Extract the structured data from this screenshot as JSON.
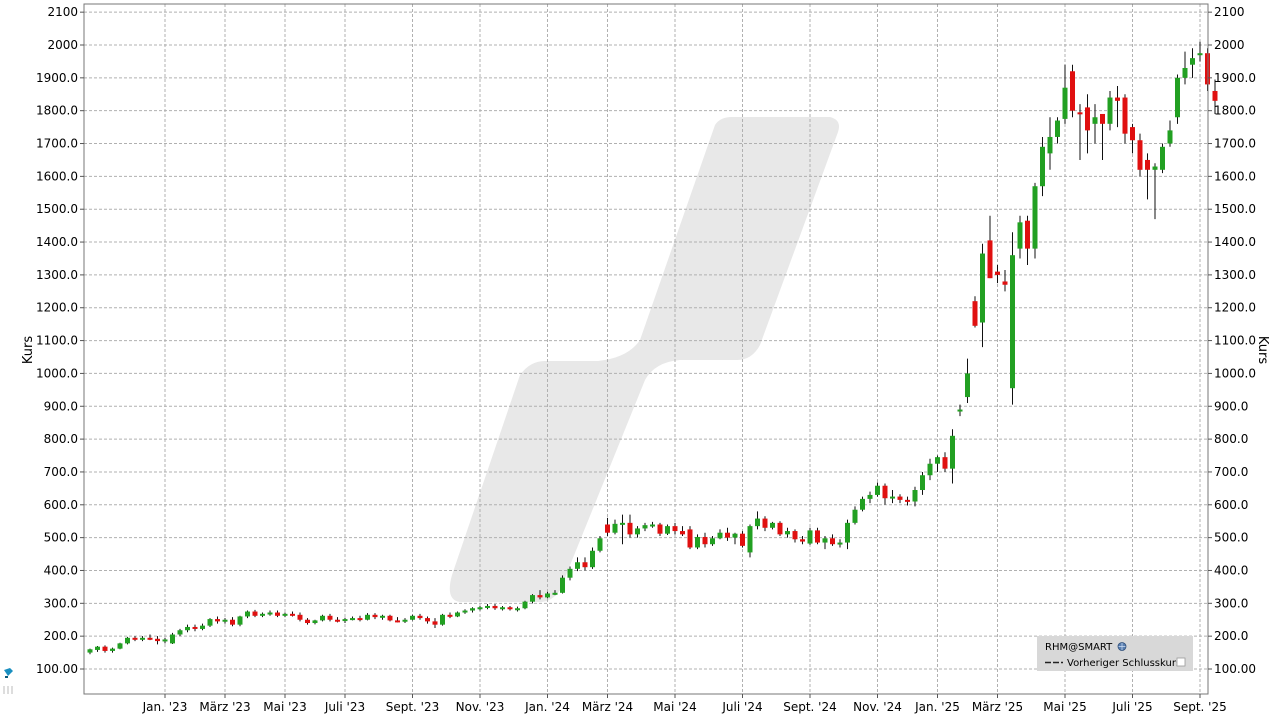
{
  "chart_data": {
    "type": "candlestick",
    "symbol": "RHM@SMART",
    "ylabel_left": "Kurs",
    "ylabel_right": "Kurs",
    "ylim": [
      60,
      2120
    ],
    "y_ticks_left": [
      "2100",
      "2000",
      "1900.0",
      "1800.0",
      "1700.0",
      "1600.0",
      "1500.0",
      "1400.0",
      "1300.0",
      "1200.0",
      "1100.0",
      "1000.0",
      "900.0",
      "800.0",
      "700.0",
      "600.0",
      "500.0",
      "400.0",
      "300.0",
      "200.0",
      "100.00"
    ],
    "y_ticks_right": [
      "2100",
      "2000",
      "1900.0",
      "1800.0",
      "1700.0",
      "1600.0",
      "1500.0",
      "1400.0",
      "1300.0",
      "1200.0",
      "1100.0",
      "1000.0",
      "900.0",
      "800.0",
      "700.0",
      "600.0",
      "500.0",
      "400.0",
      "300.0",
      "200.0",
      "100.00"
    ],
    "y_tick_values": [
      2100,
      2000,
      1900,
      1800,
      1700,
      1600,
      1500,
      1400,
      1300,
      1200,
      1100,
      1000,
      900,
      800,
      700,
      600,
      500,
      400,
      300,
      200,
      100
    ],
    "x_ticks": [
      "Jan. '23",
      "März '23",
      "Mai '23",
      "Juli '23",
      "Sept. '23",
      "Nov. '23",
      "Jan. '24",
      "März '24",
      "Mai '24",
      "Juli '24",
      "Sept. '24",
      "Nov. '24",
      "Jan. '25",
      "März '25",
      "Mai '25",
      "Juli '25",
      "Sept. '25"
    ],
    "x_tick_weeks": [
      10,
      18,
      26,
      34,
      43,
      52,
      61,
      69,
      78,
      87,
      96,
      105,
      113,
      121,
      130,
      139,
      148
    ],
    "grid": true,
    "legend": {
      "position": "bottom-right",
      "series_label": "RHM@SMART",
      "line_label": "Vorheriger Schlusskurs"
    },
    "colors": {
      "up": "#22a022",
      "down": "#e01010",
      "grid": "#b0b0b0",
      "wick": "#111111"
    },
    "candles": [
      {
        "o": 150,
        "h": 162,
        "l": 145,
        "c": 160
      },
      {
        "o": 158,
        "h": 170,
        "l": 152,
        "c": 168
      },
      {
        "o": 168,
        "h": 172,
        "l": 150,
        "c": 155
      },
      {
        "o": 155,
        "h": 165,
        "l": 150,
        "c": 162
      },
      {
        "o": 162,
        "h": 180,
        "l": 160,
        "c": 178
      },
      {
        "o": 178,
        "h": 198,
        "l": 175,
        "c": 195
      },
      {
        "o": 195,
        "h": 200,
        "l": 185,
        "c": 190
      },
      {
        "o": 190,
        "h": 200,
        "l": 185,
        "c": 195
      },
      {
        "o": 195,
        "h": 205,
        "l": 188,
        "c": 192
      },
      {
        "o": 192,
        "h": 200,
        "l": 175,
        "c": 185
      },
      {
        "o": 185,
        "h": 195,
        "l": 178,
        "c": 190
      },
      {
        "o": 178,
        "h": 210,
        "l": 176,
        "c": 205
      },
      {
        "o": 205,
        "h": 222,
        "l": 200,
        "c": 218
      },
      {
        "o": 218,
        "h": 235,
        "l": 212,
        "c": 228
      },
      {
        "o": 228,
        "h": 235,
        "l": 215,
        "c": 222
      },
      {
        "o": 222,
        "h": 238,
        "l": 218,
        "c": 232
      },
      {
        "o": 232,
        "h": 255,
        "l": 228,
        "c": 252
      },
      {
        "o": 252,
        "h": 260,
        "l": 238,
        "c": 245
      },
      {
        "o": 245,
        "h": 255,
        "l": 238,
        "c": 250
      },
      {
        "o": 250,
        "h": 258,
        "l": 230,
        "c": 235
      },
      {
        "o": 235,
        "h": 262,
        "l": 230,
        "c": 260
      },
      {
        "o": 260,
        "h": 278,
        "l": 255,
        "c": 275
      },
      {
        "o": 275,
        "h": 280,
        "l": 258,
        "c": 262
      },
      {
        "o": 262,
        "h": 272,
        "l": 258,
        "c": 268
      },
      {
        "o": 268,
        "h": 278,
        "l": 262,
        "c": 272
      },
      {
        "o": 272,
        "h": 278,
        "l": 258,
        "c": 262
      },
      {
        "o": 262,
        "h": 272,
        "l": 258,
        "c": 268
      },
      {
        "o": 268,
        "h": 275,
        "l": 260,
        "c": 265
      },
      {
        "o": 265,
        "h": 272,
        "l": 245,
        "c": 250
      },
      {
        "o": 250,
        "h": 255,
        "l": 235,
        "c": 240
      },
      {
        "o": 240,
        "h": 250,
        "l": 236,
        "c": 248
      },
      {
        "o": 248,
        "h": 265,
        "l": 245,
        "c": 262
      },
      {
        "o": 262,
        "h": 268,
        "l": 245,
        "c": 250
      },
      {
        "o": 250,
        "h": 258,
        "l": 242,
        "c": 248
      },
      {
        "o": 248,
        "h": 256,
        "l": 240,
        "c": 252
      },
      {
        "o": 252,
        "h": 260,
        "l": 248,
        "c": 255
      },
      {
        "o": 255,
        "h": 262,
        "l": 245,
        "c": 250
      },
      {
        "o": 250,
        "h": 270,
        "l": 248,
        "c": 265
      },
      {
        "o": 265,
        "h": 270,
        "l": 252,
        "c": 258
      },
      {
        "o": 258,
        "h": 265,
        "l": 250,
        "c": 262
      },
      {
        "o": 262,
        "h": 265,
        "l": 245,
        "c": 248
      },
      {
        "o": 248,
        "h": 258,
        "l": 242,
        "c": 245
      },
      {
        "o": 245,
        "h": 255,
        "l": 240,
        "c": 250
      },
      {
        "o": 250,
        "h": 265,
        "l": 248,
        "c": 262
      },
      {
        "o": 262,
        "h": 268,
        "l": 250,
        "c": 255
      },
      {
        "o": 255,
        "h": 260,
        "l": 238,
        "c": 245
      },
      {
        "o": 245,
        "h": 255,
        "l": 225,
        "c": 235
      },
      {
        "o": 235,
        "h": 268,
        "l": 232,
        "c": 265
      },
      {
        "o": 265,
        "h": 272,
        "l": 255,
        "c": 260
      },
      {
        "o": 260,
        "h": 275,
        "l": 258,
        "c": 272
      },
      {
        "o": 272,
        "h": 282,
        "l": 268,
        "c": 278
      },
      {
        "o": 278,
        "h": 288,
        "l": 272,
        "c": 285
      },
      {
        "o": 285,
        "h": 292,
        "l": 278,
        "c": 288
      },
      {
        "o": 288,
        "h": 298,
        "l": 282,
        "c": 292
      },
      {
        "o": 292,
        "h": 298,
        "l": 280,
        "c": 285
      },
      {
        "o": 285,
        "h": 292,
        "l": 278,
        "c": 288
      },
      {
        "o": 288,
        "h": 292,
        "l": 278,
        "c": 282
      },
      {
        "o": 282,
        "h": 290,
        "l": 275,
        "c": 285
      },
      {
        "o": 285,
        "h": 308,
        "l": 282,
        "c": 305
      },
      {
        "o": 305,
        "h": 328,
        "l": 300,
        "c": 325
      },
      {
        "o": 325,
        "h": 340,
        "l": 312,
        "c": 318
      },
      {
        "o": 318,
        "h": 335,
        "l": 315,
        "c": 330
      },
      {
        "o": 330,
        "h": 340,
        "l": 325,
        "c": 332
      },
      {
        "o": 332,
        "h": 385,
        "l": 330,
        "c": 378
      },
      {
        "o": 378,
        "h": 412,
        "l": 370,
        "c": 405
      },
      {
        "o": 405,
        "h": 440,
        "l": 398,
        "c": 425
      },
      {
        "o": 425,
        "h": 440,
        "l": 400,
        "c": 410
      },
      {
        "o": 410,
        "h": 470,
        "l": 405,
        "c": 460
      },
      {
        "o": 460,
        "h": 505,
        "l": 455,
        "c": 498
      },
      {
        "o": 540,
        "h": 560,
        "l": 505,
        "c": 515
      },
      {
        "o": 515,
        "h": 555,
        "l": 510,
        "c": 542
      },
      {
        "o": 542,
        "h": 570,
        "l": 480,
        "c": 545
      },
      {
        "o": 545,
        "h": 570,
        "l": 500,
        "c": 510
      },
      {
        "o": 510,
        "h": 535,
        "l": 500,
        "c": 528
      },
      {
        "o": 528,
        "h": 545,
        "l": 520,
        "c": 538
      },
      {
        "o": 538,
        "h": 548,
        "l": 530,
        "c": 540
      },
      {
        "o": 540,
        "h": 545,
        "l": 505,
        "c": 512
      },
      {
        "o": 512,
        "h": 540,
        "l": 508,
        "c": 535
      },
      {
        "o": 535,
        "h": 545,
        "l": 510,
        "c": 520
      },
      {
        "o": 520,
        "h": 535,
        "l": 505,
        "c": 510
      },
      {
        "o": 525,
        "h": 535,
        "l": 465,
        "c": 470
      },
      {
        "o": 470,
        "h": 510,
        "l": 465,
        "c": 502
      },
      {
        "o": 502,
        "h": 515,
        "l": 470,
        "c": 480
      },
      {
        "o": 480,
        "h": 505,
        "l": 475,
        "c": 498
      },
      {
        "o": 498,
        "h": 525,
        "l": 495,
        "c": 515
      },
      {
        "o": 515,
        "h": 530,
        "l": 490,
        "c": 500
      },
      {
        "o": 500,
        "h": 515,
        "l": 480,
        "c": 512
      },
      {
        "o": 512,
        "h": 520,
        "l": 470,
        "c": 475
      },
      {
        "o": 455,
        "h": 540,
        "l": 440,
        "c": 535
      },
      {
        "o": 535,
        "h": 580,
        "l": 525,
        "c": 558
      },
      {
        "o": 558,
        "h": 565,
        "l": 520,
        "c": 530
      },
      {
        "o": 530,
        "h": 548,
        "l": 525,
        "c": 545
      },
      {
        "o": 545,
        "h": 550,
        "l": 505,
        "c": 510
      },
      {
        "o": 510,
        "h": 530,
        "l": 500,
        "c": 520
      },
      {
        "o": 520,
        "h": 525,
        "l": 485,
        "c": 495
      },
      {
        "o": 495,
        "h": 505,
        "l": 480,
        "c": 488
      },
      {
        "o": 482,
        "h": 530,
        "l": 478,
        "c": 522
      },
      {
        "o": 522,
        "h": 530,
        "l": 480,
        "c": 485
      },
      {
        "o": 485,
        "h": 505,
        "l": 465,
        "c": 498
      },
      {
        "o": 498,
        "h": 510,
        "l": 475,
        "c": 480
      },
      {
        "o": 480,
        "h": 495,
        "l": 470,
        "c": 485
      },
      {
        "o": 485,
        "h": 555,
        "l": 465,
        "c": 545
      },
      {
        "o": 545,
        "h": 595,
        "l": 540,
        "c": 585
      },
      {
        "o": 585,
        "h": 625,
        "l": 580,
        "c": 618
      },
      {
        "o": 618,
        "h": 640,
        "l": 605,
        "c": 630
      },
      {
        "o": 630,
        "h": 668,
        "l": 625,
        "c": 658
      },
      {
        "o": 658,
        "h": 665,
        "l": 600,
        "c": 620
      },
      {
        "o": 620,
        "h": 645,
        "l": 605,
        "c": 625
      },
      {
        "o": 625,
        "h": 632,
        "l": 605,
        "c": 615
      },
      {
        "o": 615,
        "h": 625,
        "l": 598,
        "c": 610
      },
      {
        "o": 610,
        "h": 655,
        "l": 595,
        "c": 645
      },
      {
        "o": 645,
        "h": 700,
        "l": 630,
        "c": 690
      },
      {
        "o": 690,
        "h": 740,
        "l": 675,
        "c": 725
      },
      {
        "o": 725,
        "h": 750,
        "l": 700,
        "c": 745
      },
      {
        "o": 745,
        "h": 760,
        "l": 700,
        "c": 710
      },
      {
        "o": 710,
        "h": 830,
        "l": 665,
        "c": 810
      },
      {
        "o": 890,
        "h": 905,
        "l": 870,
        "c": 890
      },
      {
        "o": 928,
        "h": 1045,
        "l": 910,
        "c": 1000
      },
      {
        "o": 1220,
        "h": 1235,
        "l": 1140,
        "c": 1145
      },
      {
        "o": 1155,
        "h": 1395,
        "l": 1080,
        "c": 1365
      },
      {
        "o": 1405,
        "h": 1480,
        "l": 1310,
        "c": 1290
      },
      {
        "o": 1310,
        "h": 1330,
        "l": 1275,
        "c": 1300
      },
      {
        "o": 1280,
        "h": 1315,
        "l": 1250,
        "c": 1270
      },
      {
        "o": 955,
        "h": 1430,
        "l": 905,
        "c": 1360
      },
      {
        "o": 1380,
        "h": 1480,
        "l": 1350,
        "c": 1460
      },
      {
        "o": 1465,
        "h": 1480,
        "l": 1330,
        "c": 1380
      },
      {
        "o": 1380,
        "h": 1580,
        "l": 1350,
        "c": 1570
      },
      {
        "o": 1570,
        "h": 1720,
        "l": 1540,
        "c": 1690
      },
      {
        "o": 1670,
        "h": 1780,
        "l": 1620,
        "c": 1720
      },
      {
        "o": 1720,
        "h": 1780,
        "l": 1700,
        "c": 1770
      },
      {
        "o": 1775,
        "h": 1940,
        "l": 1760,
        "c": 1870
      },
      {
        "o": 1920,
        "h": 1940,
        "l": 1780,
        "c": 1800
      },
      {
        "o": 1795,
        "h": 1820,
        "l": 1650,
        "c": 1790
      },
      {
        "o": 1810,
        "h": 1850,
        "l": 1670,
        "c": 1740
      },
      {
        "o": 1760,
        "h": 1820,
        "l": 1700,
        "c": 1780
      },
      {
        "o": 1790,
        "h": 1780,
        "l": 1650,
        "c": 1760
      },
      {
        "o": 1760,
        "h": 1860,
        "l": 1740,
        "c": 1840
      },
      {
        "o": 1840,
        "h": 1875,
        "l": 1750,
        "c": 1830
      },
      {
        "o": 1840,
        "h": 1850,
        "l": 1700,
        "c": 1730
      },
      {
        "o": 1750,
        "h": 1760,
        "l": 1670,
        "c": 1710
      },
      {
        "o": 1710,
        "h": 1730,
        "l": 1600,
        "c": 1620
      },
      {
        "o": 1650,
        "h": 1670,
        "l": 1530,
        "c": 1620
      },
      {
        "o": 1620,
        "h": 1640,
        "l": 1470,
        "c": 1630
      },
      {
        "o": 1620,
        "h": 1700,
        "l": 1610,
        "c": 1690
      },
      {
        "o": 1700,
        "h": 1770,
        "l": 1690,
        "c": 1740
      },
      {
        "o": 1780,
        "h": 1910,
        "l": 1760,
        "c": 1900
      },
      {
        "o": 1900,
        "h": 1980,
        "l": 1880,
        "c": 1930
      },
      {
        "o": 1940,
        "h": 1990,
        "l": 1900,
        "c": 1960
      },
      {
        "o": 1970,
        "h": 2010,
        "l": 1950,
        "c": 1975
      },
      {
        "o": 1975,
        "h": 1990,
        "l": 1860,
        "c": 1880
      },
      {
        "o": 1860,
        "h": 1895,
        "l": 1790,
        "c": 1830
      }
    ]
  }
}
